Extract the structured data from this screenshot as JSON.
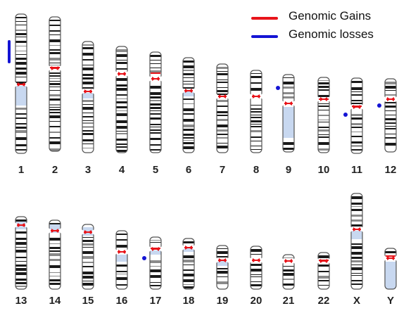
{
  "legend": {
    "gains_label": "Genomic Gains",
    "losses_label": "Genomic losses",
    "gains_color": "#e8141a",
    "losses_color": "#1414d4"
  },
  "chromosomes": [
    {
      "label": "1"
    },
    {
      "label": "2"
    },
    {
      "label": "3"
    },
    {
      "label": "4"
    },
    {
      "label": "5"
    },
    {
      "label": "6"
    },
    {
      "label": "7"
    },
    {
      "label": "8"
    },
    {
      "label": "9"
    },
    {
      "label": "10"
    },
    {
      "label": "11"
    },
    {
      "label": "12"
    },
    {
      "label": "13"
    },
    {
      "label": "14"
    },
    {
      "label": "15"
    },
    {
      "label": "16"
    },
    {
      "label": "17"
    },
    {
      "label": "18"
    },
    {
      "label": "19"
    },
    {
      "label": "20"
    },
    {
      "label": "21"
    },
    {
      "label": "22"
    },
    {
      "label": "X"
    },
    {
      "label": "Y"
    }
  ],
  "colors": {
    "outline": "#555555",
    "band_dark": "#1a1a1a",
    "band_gray": "#8a8a8a",
    "heterochromatin": "#c8d8f0",
    "centromere": "#e8141a"
  }
}
